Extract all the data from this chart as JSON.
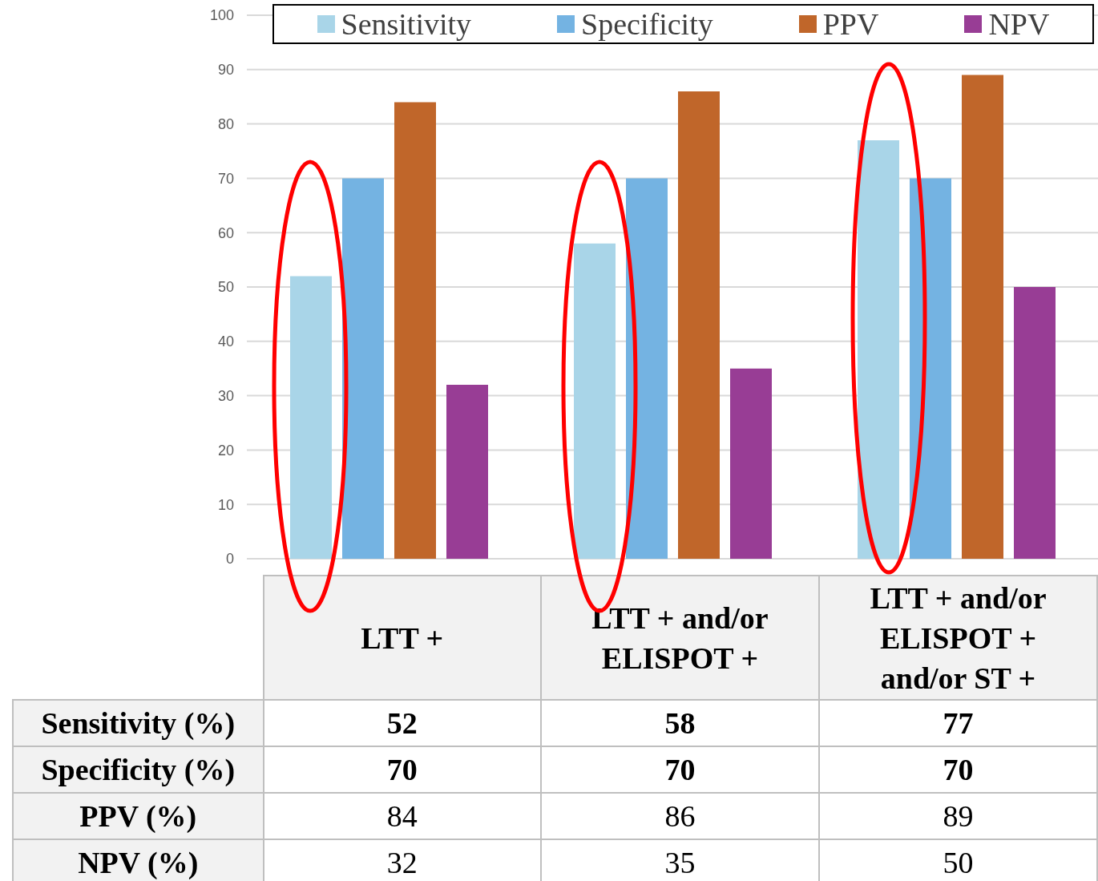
{
  "chart_data": {
    "type": "bar",
    "categories": [
      "LTT +",
      "LTT + and/or ELISPOT +",
      "LTT + and/or ELISPOT + and/or ST +"
    ],
    "series": [
      {
        "name": "Sensitivity",
        "color": "#a9d5e8",
        "values": [
          52,
          58,
          77
        ]
      },
      {
        "name": "Specificity",
        "color": "#74b3e2",
        "values": [
          70,
          70,
          70
        ]
      },
      {
        "name": "PPV",
        "color": "#c0662a",
        "values": [
          84,
          86,
          89
        ]
      },
      {
        "name": "NPV",
        "color": "#983d95",
        "values": [
          32,
          35,
          50
        ]
      }
    ],
    "annotations": [
      "Sensitivity (%)",
      "Specificity (%)",
      "PPV (%)",
      "NPV (%)"
    ],
    "ylim": [
      0,
      100
    ],
    "yticks": [
      0,
      10,
      20,
      30,
      40,
      50,
      60,
      70,
      80,
      90,
      100
    ],
    "grid": "y",
    "legend": "top",
    "data_labels": true
  }
}
